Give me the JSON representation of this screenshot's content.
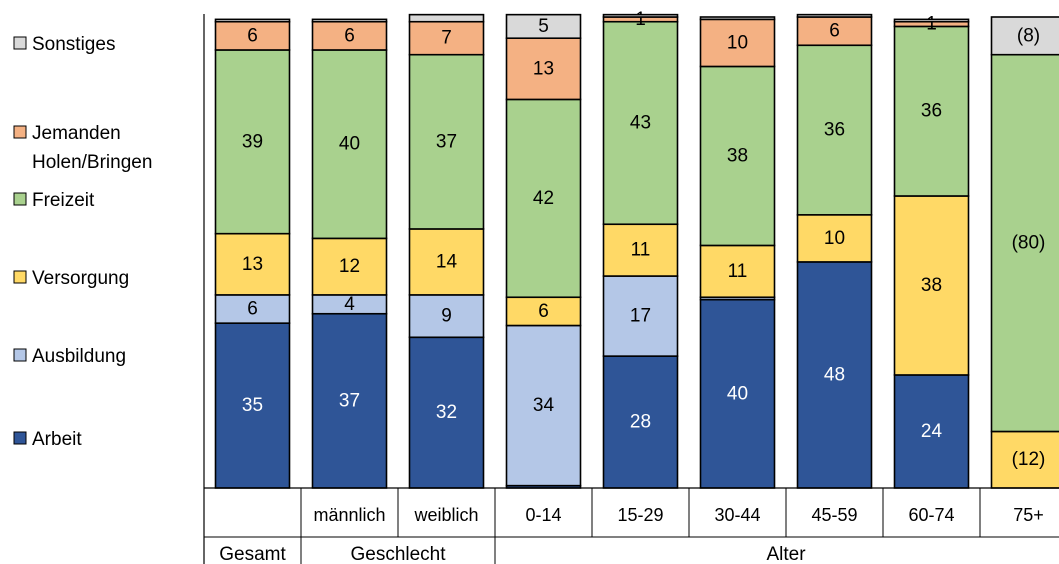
{
  "chart_data": {
    "type": "bar",
    "stacked": true,
    "percent_stacked": true,
    "categories": [
      "",
      "männlich",
      "weiblich",
      "0-14",
      "15-29",
      "30-44",
      "45-59",
      "60-74",
      "75+"
    ],
    "groups": [
      {
        "label": "Gesamt",
        "categories": [
          ""
        ]
      },
      {
        "label": "Geschlecht",
        "categories": [
          "männlich",
          "weiblich"
        ]
      },
      {
        "label": "Alter",
        "categories": [
          "0-14",
          "15-29",
          "30-44",
          "45-59",
          "60-74",
          "75+"
        ]
      }
    ],
    "series": [
      {
        "name": "Arbeit",
        "color": "#2F5597",
        "label_color": "#ffffff",
        "values": [
          35,
          37,
          32,
          0.5,
          28,
          40,
          48,
          24,
          0
        ],
        "labels": [
          "35",
          "37",
          "32",
          "",
          "28",
          "40",
          "48",
          "24",
          ""
        ]
      },
      {
        "name": "Ausbildung",
        "color": "#B4C7E7",
        "label_color": "#000000",
        "values": [
          6,
          4,
          9,
          34,
          17,
          0.5,
          0,
          0,
          0
        ],
        "labels": [
          "6",
          "4",
          "9",
          "34",
          "17",
          "",
          "",
          "",
          ""
        ]
      },
      {
        "name": "Versorgung",
        "color": "#FFD966",
        "label_color": "#000000",
        "values": [
          13,
          12,
          14,
          6,
          11,
          11,
          10,
          38,
          12
        ],
        "labels": [
          "13",
          "12",
          "14",
          "6",
          "11",
          "11",
          "10",
          "38",
          "(12)"
        ]
      },
      {
        "name": "Freizeit",
        "color": "#A9D18E",
        "label_color": "#000000",
        "values": [
          39,
          40,
          37,
          42,
          43,
          38,
          36,
          36,
          80
        ],
        "labels": [
          "39",
          "40",
          "37",
          "42",
          "43",
          "38",
          "36",
          "36",
          "(80)"
        ]
      },
      {
        "name": "Jemanden Holen/Bringen",
        "legend_lines": [
          "Jemanden",
          "Holen/Bringen"
        ],
        "color": "#F4B183",
        "label_color": "#000000",
        "values": [
          6,
          6,
          7,
          13,
          1,
          10,
          6,
          1,
          0
        ],
        "labels": [
          "6",
          "6",
          "7",
          "13",
          "1",
          "10",
          "6",
          "1",
          ""
        ]
      },
      {
        "name": "Sonstiges",
        "color": "#D9D9D9",
        "label_color": "#000000",
        "values": [
          0.5,
          0.5,
          1.5,
          5,
          0.5,
          0.5,
          0.5,
          0.5,
          8
        ],
        "labels": [
          "",
          "",
          "",
          "5",
          "",
          "",
          "",
          "",
          "(8)"
        ]
      }
    ],
    "ylim": [
      0,
      100
    ],
    "legend_position": "left",
    "grid": false
  }
}
